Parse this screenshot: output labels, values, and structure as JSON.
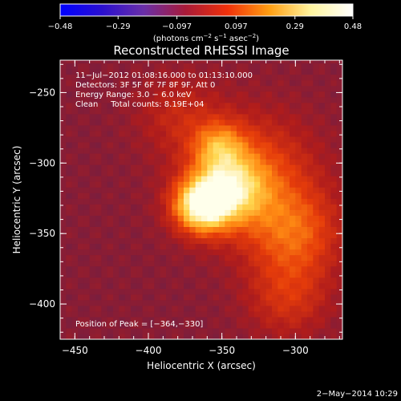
{
  "chart_data": {
    "type": "heatmap",
    "title": "Reconstructed RHESSI Image",
    "xlabel": "Heliocentric X (arcsec)",
    "ylabel": "Heliocentric Y (arcsec)",
    "xlim": [
      -460,
      -268
    ],
    "ylim": [
      -425,
      -227
    ],
    "xticks": [
      -450,
      -400,
      -350,
      -300
    ],
    "yticks": [
      -250,
      -300,
      -350,
      -400
    ],
    "xtick_labels": [
      "−450",
      "−400",
      "−350",
      "−300"
    ],
    "ytick_labels": [
      "−250",
      "−300",
      "−350",
      "−400"
    ],
    "colorbar": {
      "range": [
        -0.48,
        0.48
      ],
      "ticks": [
        -0.48,
        -0.29,
        -0.097,
        0.097,
        0.29,
        0.48
      ],
      "tick_labels": [
        "−0.48",
        "−0.29",
        "−0.097",
        "0.097",
        "0.29",
        "0.48"
      ],
      "units_parts": [
        "(photons cm",
        "−2",
        " s",
        "−1",
        " asec",
        "−2",
        ")"
      ],
      "colors": [
        "#0000ff",
        "#2a0fd0",
        "#6a2fa8",
        "#a81a38",
        "#f0300a",
        "#ff9e12",
        "#fff6a0",
        "#ffffff"
      ]
    },
    "annotation_lines": [
      "11−Jul−2012 01:08:16.000 to 01:13:10.000",
      "Detectors: 3F 5F 6F 7F 8F 9F, Att 0",
      "Energy Range: 3.0 − 6.0 keV",
      "Clean     Total counts: 8.19E+04"
    ],
    "peak_label": "Position of Peak = [−364,−330]",
    "peak": [
      -364,
      -330
    ],
    "sources": [
      {
        "x": -364,
        "y": -330,
        "amp": 0.48,
        "sigma": 13
      },
      {
        "x": -345,
        "y": -318,
        "amp": 0.3,
        "sigma": 16
      },
      {
        "x": -352,
        "y": -288,
        "amp": 0.22,
        "sigma": 12
      },
      {
        "x": -330,
        "y": -310,
        "amp": 0.22,
        "sigma": 30
      },
      {
        "x": -300,
        "y": -350,
        "amp": 0.2,
        "sigma": 22
      },
      {
        "x": -305,
        "y": -395,
        "amp": 0.14,
        "sigma": 20
      },
      {
        "x": -380,
        "y": -265,
        "amp": 0.1,
        "sigma": 20
      }
    ],
    "footer": "2−May−2014 10:29"
  }
}
